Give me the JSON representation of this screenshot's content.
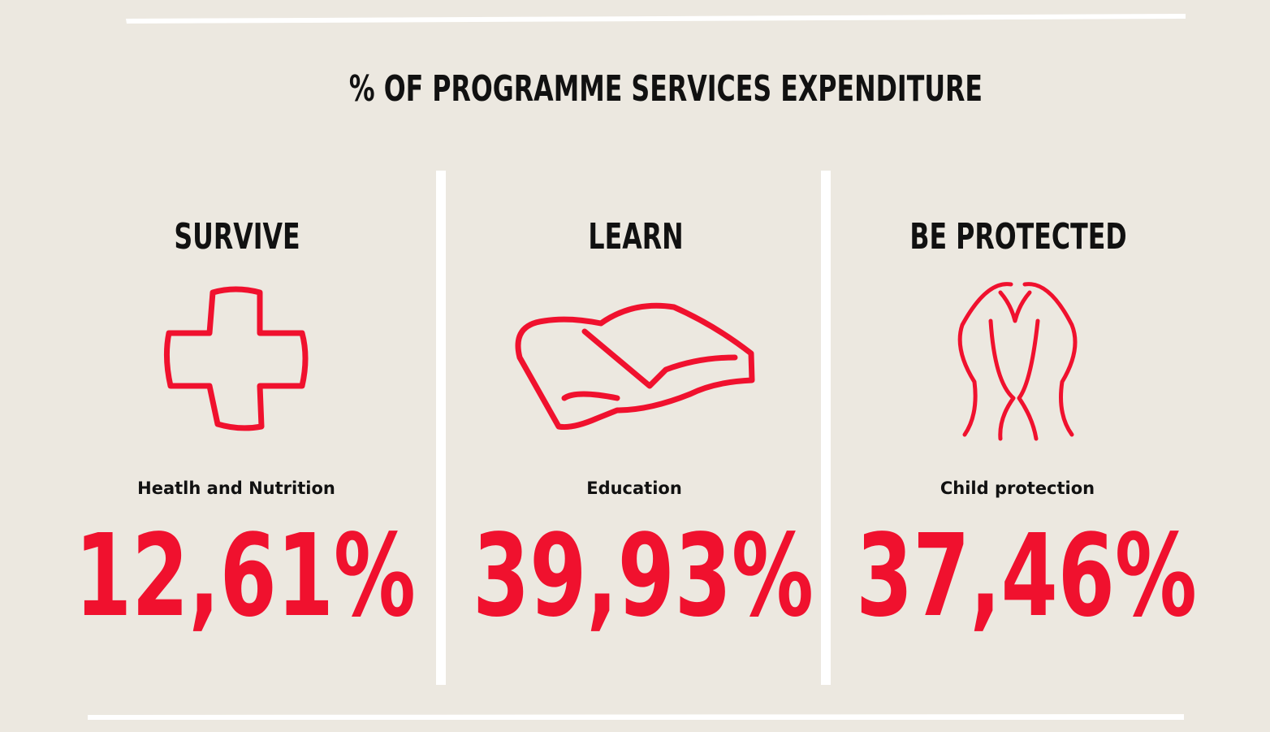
{
  "title": "% OF PROGRAMME SERVICES EXPENDITURE",
  "columns": [
    {
      "heading": "SURVIVE",
      "label": "Heatlh and Nutrition",
      "value": "12,61%"
    },
    {
      "heading": "LEARN",
      "label": "Education",
      "value": "39,93%"
    },
    {
      "heading": "BE PROTECTED",
      "label": "Child protection",
      "value": "37,46%"
    }
  ]
}
